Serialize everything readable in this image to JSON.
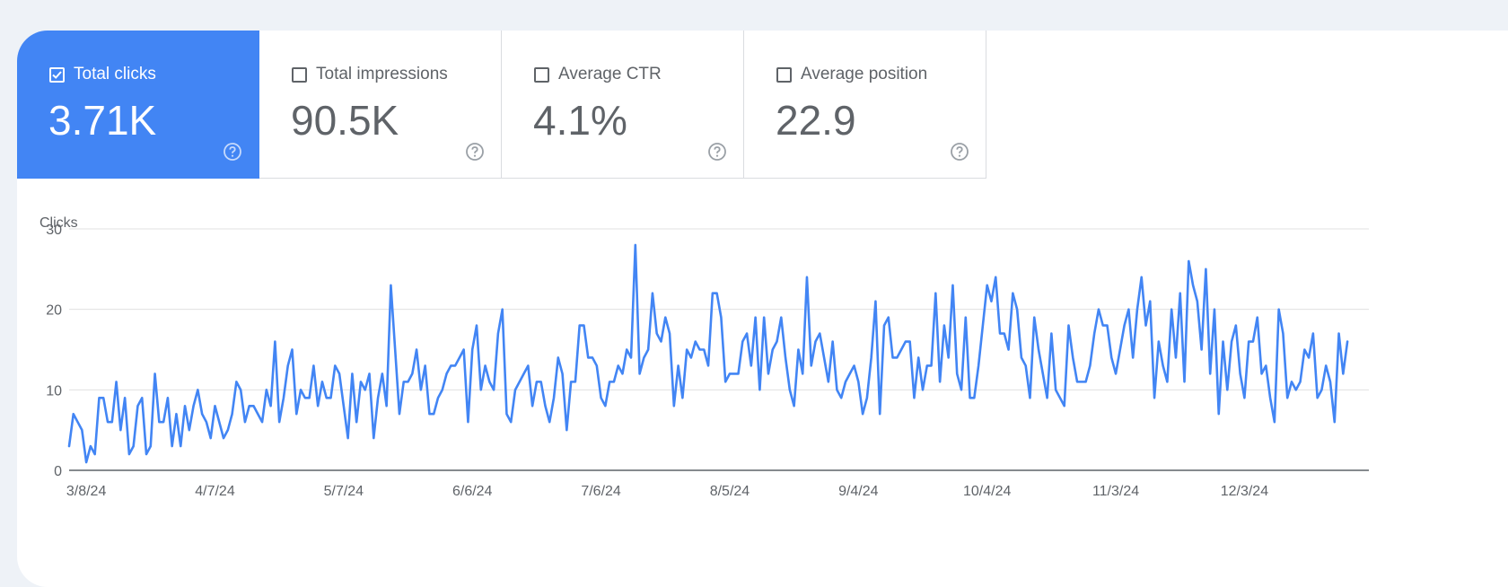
{
  "metrics": [
    {
      "label": "Total clicks",
      "value": "3.71K",
      "checked": true
    },
    {
      "label": "Total impressions",
      "value": "90.5K",
      "checked": false
    },
    {
      "label": "Average CTR",
      "value": "4.1%",
      "checked": false
    },
    {
      "label": "Average position",
      "value": "22.9",
      "checked": false
    }
  ],
  "colors": {
    "accent": "#4285f4",
    "line": "#4285f4",
    "text": "#5f6368",
    "grid": "#e0e0e0"
  },
  "chart_data": {
    "type": "line",
    "ylabel": "Clicks",
    "ylim": [
      0,
      30
    ],
    "yticks": [
      0,
      10,
      20,
      30
    ],
    "xlim": [
      "3/4/24",
      "1/1/25"
    ],
    "xticks": [
      "3/8/24",
      "4/7/24",
      "5/7/24",
      "6/6/24",
      "7/6/24",
      "8/5/24",
      "9/4/24",
      "10/4/24",
      "11/3/24",
      "12/3/24"
    ],
    "grid": true,
    "series": [
      {
        "start_date": "3/4/24",
        "values": [
          3,
          7,
          6,
          5,
          1,
          3,
          2,
          9,
          9,
          6,
          6,
          11,
          5,
          9,
          2,
          3,
          8,
          9,
          2,
          3,
          12,
          6,
          6,
          9,
          3,
          7,
          3,
          8,
          5,
          8,
          10,
          7,
          6,
          4,
          8,
          6,
          4,
          5,
          7,
          11,
          10,
          6,
          8,
          8,
          7,
          6,
          10,
          8,
          16,
          6,
          9,
          13,
          15,
          7,
          10,
          9,
          9,
          13,
          8,
          11,
          9,
          9,
          13,
          12,
          8,
          4,
          12,
          6,
          11,
          10,
          12,
          4,
          9,
          12,
          8,
          23,
          15,
          7,
          11,
          11,
          12,
          15,
          10,
          13,
          7,
          7,
          9,
          10,
          12,
          13,
          13,
          14,
          15,
          6,
          15,
          18,
          10,
          13,
          11,
          10,
          17,
          20,
          7,
          6,
          10,
          11,
          12,
          13,
          8,
          11,
          11,
          8,
          6,
          9,
          14,
          12,
          5,
          11,
          11,
          18,
          18,
          14,
          14,
          13,
          9,
          8,
          11,
          11,
          13,
          12,
          15,
          14,
          28,
          12,
          14,
          15,
          22,
          17,
          16,
          19,
          17,
          8,
          13,
          9,
          15,
          14,
          16,
          15,
          15,
          13,
          22,
          22,
          19,
          11,
          12,
          12,
          12,
          16,
          17,
          13,
          19,
          10,
          19,
          12,
          15,
          16,
          19,
          14,
          10,
          8,
          15,
          12,
          24,
          13,
          16,
          17,
          14,
          11,
          16,
          10,
          9,
          11,
          12,
          13,
          11,
          7,
          9,
          14,
          21,
          7,
          18,
          19,
          14,
          14,
          15,
          16,
          16,
          9,
          14,
          10,
          13,
          13,
          22,
          11,
          18,
          14,
          23,
          12,
          10,
          19,
          9,
          9,
          13,
          18,
          23,
          21,
          24,
          17,
          17,
          15,
          22,
          20,
          14,
          13,
          9,
          19,
          15,
          12,
          9,
          17,
          10,
          9,
          8,
          18,
          14,
          11,
          11,
          11,
          13,
          17,
          20,
          18,
          18,
          14,
          12,
          15,
          18,
          20,
          14,
          20,
          24,
          18,
          21,
          9,
          16,
          13,
          11,
          20,
          14,
          22,
          11,
          26,
          23,
          21,
          15,
          25,
          12,
          20,
          7,
          16,
          10,
          16,
          18,
          12,
          9,
          16,
          16,
          19,
          12,
          13,
          9,
          6,
          20,
          17,
          9,
          11,
          10,
          11,
          15,
          14,
          17,
          9,
          10,
          13,
          11,
          6,
          17,
          12,
          16
        ]
      }
    ]
  }
}
